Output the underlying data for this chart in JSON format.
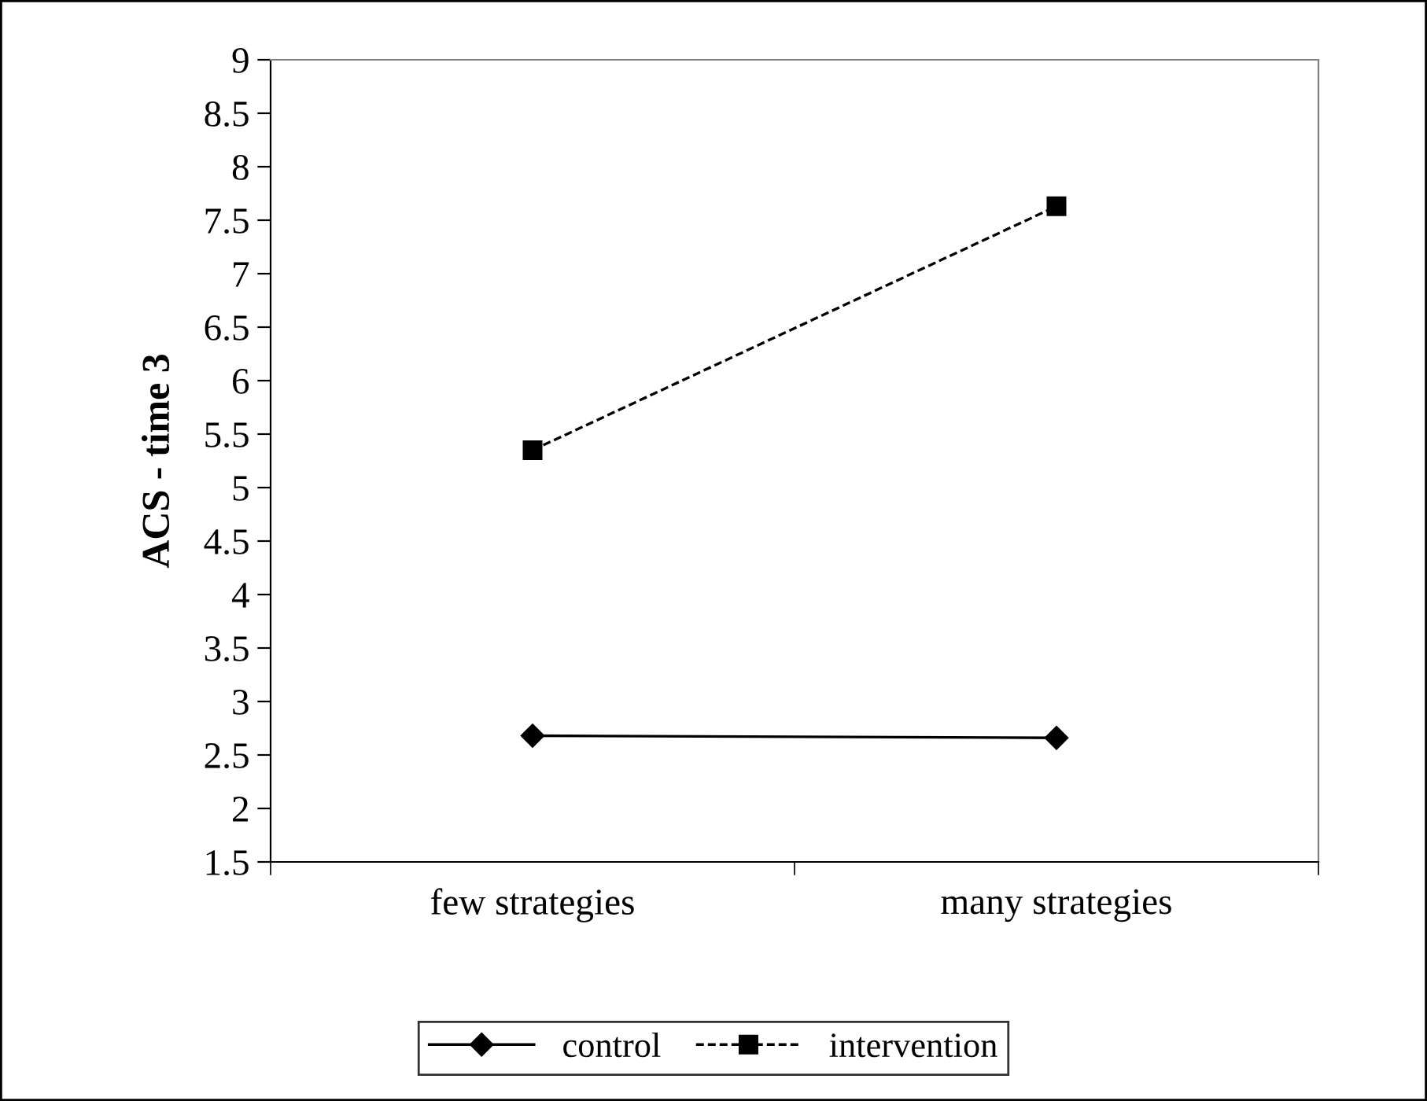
{
  "chart_data": {
    "type": "line",
    "ylabel": "ACS - time 3",
    "categories": [
      "few strategies",
      "many strategies"
    ],
    "series": [
      {
        "name": "control",
        "color": "#000000",
        "values": [
          2.68,
          2.66
        ],
        "marker": "diamond",
        "line_style": "solid"
      },
      {
        "name": "intervention",
        "color": "#000000",
        "values": [
          5.35,
          7.63
        ],
        "marker": "square",
        "line_style": "dashed"
      }
    ],
    "ylim": [
      1.5,
      9
    ],
    "yticks": [
      1.5,
      2,
      2.5,
      3,
      3.5,
      4,
      4.5,
      5,
      5.5,
      6,
      6.5,
      7,
      7.5,
      8,
      8.5,
      9
    ],
    "grid": false,
    "legend": "bottom"
  }
}
